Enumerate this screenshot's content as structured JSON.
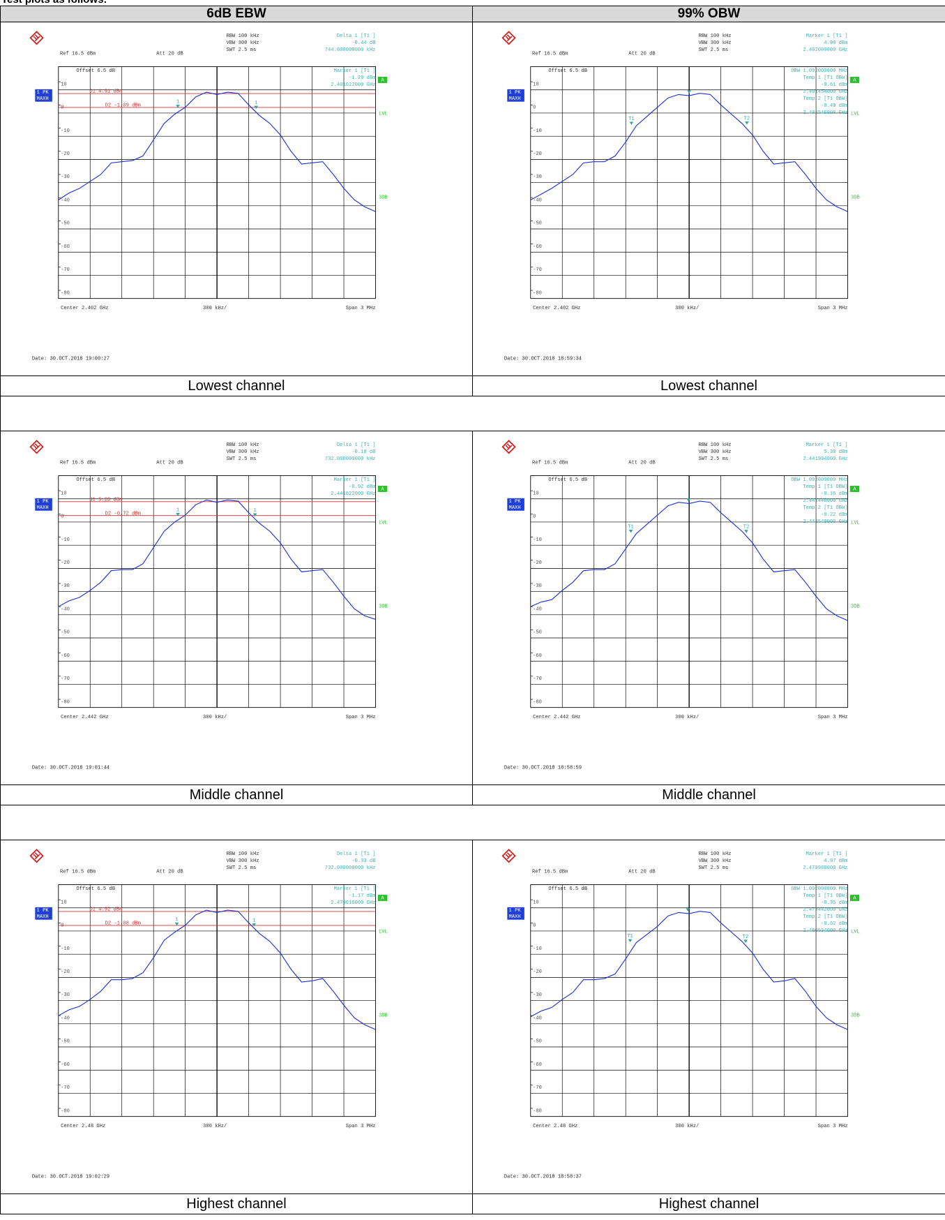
{
  "intro": "Test plots as follows:",
  "table": {
    "headers": [
      "6dB EBW",
      "99% OBW"
    ],
    "rows": [
      {
        "labels": [
          "Lowest channel",
          "Lowest channel"
        ],
        "plots": [
          {
            "type": "line",
            "settings": [
              "RBW 100 kHz",
              "VBW 300 kHz",
              "SWT 2.5 ms"
            ],
            "ref": "Ref 16.5 dBm",
            "att": "Att 20 dB",
            "offset": "Offset 6.5 dB",
            "marker_top": [
              "Delta 1 [T1 ]",
              "-0.44 dB",
              "744.000000000 kHz"
            ],
            "marker_inner": [
              "Marker 1 [T1 ]",
              "-1.29 dBm",
              "2.401622000 GHz"
            ],
            "trace_label": [
              "1 PK",
              "MAXH"
            ],
            "side": [
              "A",
              "LVL",
              "3DB"
            ],
            "center": "Center 2.402 GHz",
            "div": "300 kHz/",
            "span": "Span 3 MHz",
            "date": "Date: 30.OCT.2018 19:00:27",
            "xlim": [
              -1.5,
              1.5
            ],
            "ylim": [
              -83.5,
              16.5
            ],
            "yticks": [
              10,
              0,
              -10,
              -20,
              -30,
              -40,
              -50,
              -60,
              -70,
              -80
            ],
            "lines": [
              {
                "value": 4.91,
                "label": "D1 4.91 dBm"
              },
              {
                "value": -1.09,
                "label": "D2 -1.09 dBm"
              }
            ],
            "markers": [
              {
                "label": "1",
                "x": -0.37,
                "y": -1.29
              },
              {
                "label": "1",
                "x": 0.37,
                "y": -1.73
              }
            ],
            "color": "#1c2fd6",
            "values": [
              -41,
              -38,
              -36,
              -33,
              -30,
              -25,
              -24.5,
              -24,
              -22,
              -15,
              -8,
              -4,
              -1,
              3.5,
              5.5,
              4.5,
              5.5,
              5,
              0,
              -4.5,
              -8,
              -13,
              -20,
              -25.5,
              -25,
              -24.5,
              -30,
              -36,
              -41,
              -44,
              -46
            ]
          },
          {
            "type": "line",
            "settings": [
              "RBW 100 kHz",
              "VBW 300 kHz",
              "SWT 2.5 ms"
            ],
            "ref": "Ref 16.5 dBm",
            "att": "Att 20 dB",
            "offset": "Offset 6.5 dB",
            "marker_top": [
              "Marker 1 [T1 ]",
              "4.90 dBm",
              "2.402000000 GHz"
            ],
            "marker_inner": [
              "OBW 1.092000000 MHz",
              "Temp 1 [T1 OBW]",
              "-8.61 dBm",
              "2.401454000 GHz",
              "Temp 2 [T1 OBW]",
              "-8.49 dBm",
              "2.402546000 GHz"
            ],
            "trace_label": [
              "1 PK",
              "MAXH"
            ],
            "side": [
              "A",
              "LVL",
              "3DB"
            ],
            "center": "Center 2.402 GHz",
            "div": "300 kHz/",
            "span": "Span 3 MHz",
            "date": "Date: 30.OCT.2018 18:59:34",
            "xlim": [
              -1.5,
              1.5
            ],
            "ylim": [
              -83.5,
              16.5
            ],
            "yticks": [
              10,
              0,
              -10,
              -20,
              -30,
              -40,
              -50,
              -60,
              -70,
              -80
            ],
            "lines": [],
            "markers": [
              {
                "x": 0,
                "y": 4.9
              },
              {
                "label": "T1",
                "x": -0.546,
                "y": -8.61
              },
              {
                "label": "T2",
                "x": 0.546,
                "y": -8.49
              }
            ],
            "color": "#1c2fd6",
            "values": [
              -41,
              -38.5,
              -36,
              -33,
              -30,
              -25,
              -24.5,
              -24.5,
              -22,
              -16,
              -9,
              -5,
              -1,
              3,
              4.5,
              4,
              5,
              4.5,
              0,
              -4,
              -8,
              -13,
              -20,
              -25.5,
              -25,
              -24.5,
              -30,
              -36,
              -41,
              -44,
              -46
            ]
          }
        ]
      },
      {
        "labels": [
          "Middle channel",
          "Middle channel"
        ],
        "plots": [
          {
            "type": "line",
            "settings": [
              "RBW 100 kHz",
              "VBW 300 kHz",
              "SWT 2.5 ms"
            ],
            "ref": "Ref 16.5 dBm",
            "att": "Att 20 dB",
            "offset": "Offset 6.5 dB",
            "marker_top": [
              "Delta 1 [T1 ]",
              "-0.18 dB",
              "732.000000000 kHz"
            ],
            "marker_inner": [
              "Marker 1 [T1 ]",
              "-0.92 dBm",
              "2.441622000 GHz"
            ],
            "trace_label": [
              "1 PK",
              "MAXH"
            ],
            "side": [
              "A",
              "LVL",
              "3DB"
            ],
            "center": "Center 2.442 GHz",
            "div": "300 kHz/",
            "span": "Span 3 MHz",
            "date": "Date: 30.OCT.2018 19:01:44",
            "xlim": [
              -1.5,
              1.5
            ],
            "ylim": [
              -83.5,
              16.5
            ],
            "yticks": [
              10,
              0,
              -10,
              -20,
              -30,
              -40,
              -50,
              -60,
              -70,
              -80
            ],
            "lines": [
              {
                "value": 5.28,
                "label": "D1 5.28 dBm"
              },
              {
                "value": -0.72,
                "label": "D2 -0.72 dBm"
              }
            ],
            "markers": [
              {
                "label": "1",
                "x": -0.37,
                "y": -0.92
              },
              {
                "label": "1",
                "x": 0.36,
                "y": -1.1
              }
            ],
            "color": "#1c2fd6",
            "values": [
              -40,
              -37.5,
              -36,
              -33,
              -29.5,
              -24.5,
              -24,
              -24,
              -21.5,
              -14.5,
              -7.5,
              -3.5,
              -0.5,
              4,
              6,
              5,
              6,
              5.5,
              0.5,
              -4,
              -7.5,
              -12.5,
              -19.5,
              -25,
              -24.5,
              -24,
              -29.5,
              -35.5,
              -41,
              -44,
              -45.5
            ]
          },
          {
            "type": "line",
            "settings": [
              "RBW 100 kHz",
              "VBW 300 kHz",
              "SWT 2.5 ms"
            ],
            "ref": "Ref 16.5 dBm",
            "att": "Att 20 dB",
            "offset": "Offset 6.5 dB",
            "marker_top": [
              "Marker 1 [T1 ]",
              "5.30 dBm",
              "2.441994000 GHz"
            ],
            "marker_inner": [
              "OBW 1.092000000 MHz",
              "Temp 1 [T1 OBW]",
              "-8.16 dBm",
              "2.441448000 GHz",
              "Temp 2 [T1 OBW]",
              "-8.22 dBm",
              "2.442540000 GHz"
            ],
            "trace_label": [
              "1 PK",
              "MAXH"
            ],
            "side": [
              "A",
              "LVL",
              "3DB"
            ],
            "center": "Center 2.442 GHz",
            "div": "300 kHz/",
            "span": "Span 3 MHz",
            "date": "Date: 30.OCT.2018 18:58:59",
            "xlim": [
              -1.5,
              1.5
            ],
            "ylim": [
              -83.5,
              16.5
            ],
            "yticks": [
              10,
              0,
              -10,
              -20,
              -30,
              -40,
              -50,
              -60,
              -70,
              -80
            ],
            "lines": [],
            "markers": [
              {
                "x": -0.006,
                "y": 5.3
              },
              {
                "label": "T1",
                "x": -0.552,
                "y": -8.16
              },
              {
                "label": "T2",
                "x": 0.54,
                "y": -8.22
              }
            ],
            "color": "#1c2fd6",
            "values": [
              -40,
              -38,
              -37,
              -33,
              -29.5,
              -24.5,
              -24,
              -24,
              -21.5,
              -15,
              -8.5,
              -4.5,
              -0.5,
              3.5,
              5,
              4.5,
              5.5,
              5,
              0.5,
              -3.5,
              -7.5,
              -12.5,
              -19.5,
              -25,
              -24.5,
              -24,
              -29.5,
              -35.5,
              -41,
              -44,
              -46
            ]
          }
        ]
      },
      {
        "labels": [
          "Highest channel",
          "Highest channel"
        ],
        "plots": [
          {
            "type": "line",
            "settings": [
              "RBW 100 kHz",
              "VBW 300 kHz",
              "SWT 2.5 ms"
            ],
            "ref": "Ref 16.5 dBm",
            "att": "Att 20 dB",
            "offset": "Offset 6.5 dB",
            "marker_top": [
              "Delta 1 [T1 ]",
              "-0.33 dB",
              "732.000000000 kHz"
            ],
            "marker_inner": [
              "Marker 1 [T1 ]",
              "-1.17 dBm",
              "2.479616000 GHz"
            ],
            "trace_label": [
              "1 PK",
              "MAXH"
            ],
            "side": [
              "A",
              "LVL",
              "3DB"
            ],
            "center": "Center 2.48 GHz",
            "div": "300 kHz/",
            "span": "Span 3 MHz",
            "date": "Date: 30.OCT.2018 19:02:29",
            "xlim": [
              -1.5,
              1.5
            ],
            "ylim": [
              -83.5,
              16.5
            ],
            "yticks": [
              10,
              0,
              -10,
              -20,
              -30,
              -40,
              -50,
              -60,
              -70,
              -80
            ],
            "lines": [
              {
                "value": 4.92,
                "label": "D1 4.92 dBm"
              },
              {
                "value": -1.08,
                "label": "D2 -1.08 dBm"
              }
            ],
            "markers": [
              {
                "label": "1",
                "x": -0.38,
                "y": -1.17
              },
              {
                "label": "1",
                "x": 0.35,
                "y": -1.5
              }
            ],
            "color": "#1c2fd6",
            "values": [
              -40,
              -37.5,
              -36,
              -33,
              -29.5,
              -24.5,
              -24.5,
              -24,
              -21.5,
              -15,
              -7.5,
              -4,
              -1,
              3.5,
              5.5,
              4.5,
              5.5,
              5,
              0,
              -4.5,
              -8,
              -13,
              -20,
              -25.5,
              -25,
              -24,
              -29.5,
              -35.5,
              -41,
              -44,
              -46
            ]
          },
          {
            "type": "line",
            "settings": [
              "RBW 100 kHz",
              "VBW 300 kHz",
              "SWT 2.5 ms"
            ],
            "ref": "Ref 16.5 dBm",
            "att": "Att 20 dB",
            "offset": "Offset 6.5 dB",
            "marker_top": [
              "Marker 1 [T1 ]",
              "4.97 dBm",
              "2.479988000 GHz"
            ],
            "marker_inner": [
              "OBW 1.092000000 MHz",
              "Temp 1 [T1 OBW]",
              "-8.35 dBm",
              "2.479442000 GHz",
              "Temp 2 [T1 OBW]",
              "-8.62 dBm",
              "2.480534000 GHz"
            ],
            "trace_label": [
              "1 PK",
              "MAXH"
            ],
            "side": [
              "A",
              "LVL",
              "3DB"
            ],
            "center": "Center 2.48 GHz",
            "div": "300 kHz/",
            "span": "Span 3 MHz",
            "date": "Date: 30.OCT.2018 18:58:37",
            "xlim": [
              -1.5,
              1.5
            ],
            "ylim": [
              -83.5,
              16.5
            ],
            "yticks": [
              10,
              0,
              -10,
              -20,
              -30,
              -40,
              -50,
              -60,
              -70,
              -80
            ],
            "lines": [],
            "markers": [
              {
                "x": -0.012,
                "y": 4.97
              },
              {
                "label": "T1",
                "x": -0.558,
                "y": -8.35
              },
              {
                "label": "T2",
                "x": 0.534,
                "y": -8.62
              }
            ],
            "color": "#1c2fd6",
            "values": [
              -40.5,
              -38,
              -36.5,
              -33,
              -30,
              -24.5,
              -24.5,
              -24,
              -22,
              -15.5,
              -8.5,
              -5,
              -1.5,
              3,
              4.5,
              4,
              5,
              4.5,
              0,
              -4,
              -8,
              -13,
              -20,
              -25.5,
              -25,
              -24,
              -29.5,
              -36,
              -41,
              -44,
              -46
            ]
          }
        ]
      }
    ]
  }
}
